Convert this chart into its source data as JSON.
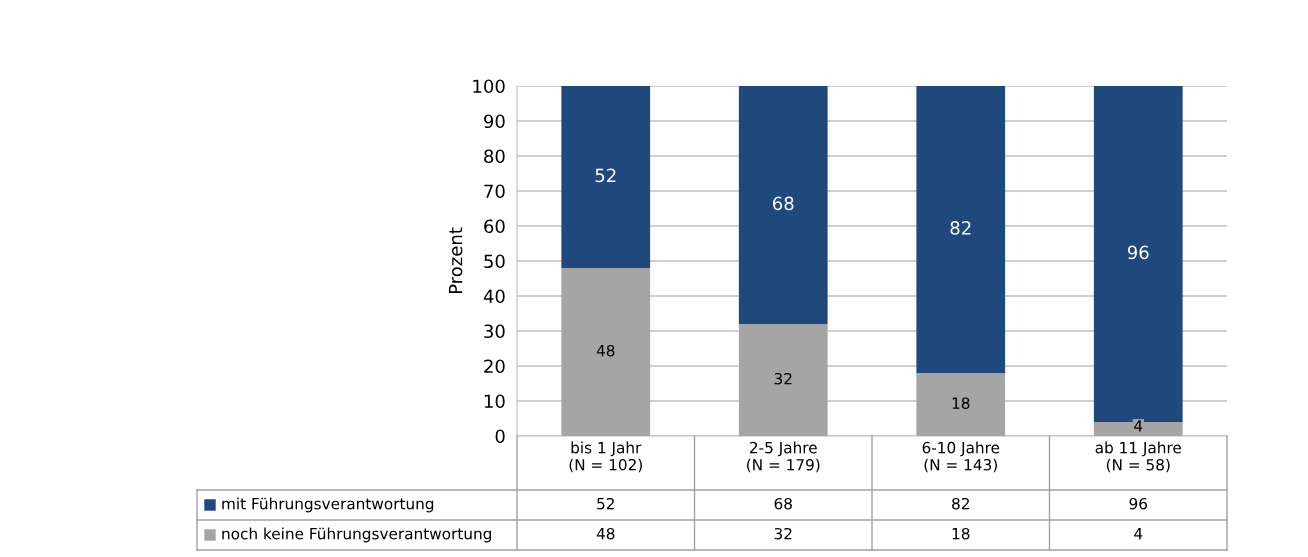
{
  "chart_data": {
    "type": "bar",
    "stacked": true,
    "ylabel": "Prozent",
    "categories": [
      "bis 1 Jahr\n(N = 102)",
      "2-5 Jahre\n(N = 179)",
      "6-10 Jahre\n(N = 143)",
      "ab 11 Jahre\n(N = 58)"
    ],
    "series": [
      {
        "name": "noch keine Führungsverantwortung",
        "color": "#a5a5a5",
        "values": [
          48,
          32,
          18,
          4
        ],
        "value_labels": [
          "48",
          "32",
          "18",
          "4"
        ]
      },
      {
        "name": "mit Führungsverantwortung",
        "color": "#1f497d",
        "values": [
          52,
          68,
          82,
          96
        ],
        "value_labels": [
          "52",
          "68",
          "82",
          "96"
        ]
      }
    ],
    "ylim": [
      0,
      100
    ],
    "yticks": [
      0,
      10,
      20,
      30,
      40,
      50,
      60,
      70,
      80,
      90,
      100
    ],
    "grid": "y",
    "legend": "bottom",
    "annotations": [
      "52",
      "68",
      "82",
      "96",
      "48",
      "32",
      "18",
      "4"
    ]
  }
}
